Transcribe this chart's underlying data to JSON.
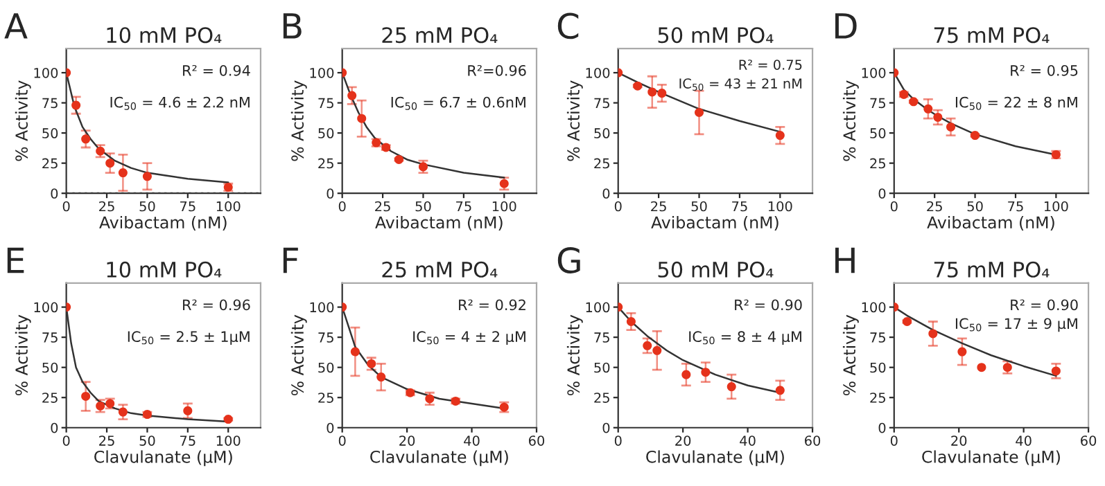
{
  "chart_data": [
    {
      "type": "scatter",
      "title": "10 mM PO₄",
      "xlabel": "Avibactam (nM)",
      "ylabel": "% Activity",
      "annotations": [
        "A",
        "R² = 0.94",
        "IC$_{50}$ = 4.6 ± 2.2 nM"
      ],
      "xlim": [
        0,
        120
      ],
      "xticks": [
        0,
        25,
        50,
        75,
        100
      ],
      "ylim": [
        0,
        120
      ],
      "yticks": [
        0,
        25,
        50,
        75,
        100
      ],
      "ref_lines": [
        {
          "axis": "y",
          "value": 0,
          "color": "#999999",
          "line_style": "dotted"
        }
      ],
      "series": [
        {
          "color": "#e5321b",
          "marker": "circle",
          "x": [
            0,
            6,
            12,
            21,
            27,
            35,
            50,
            100
          ],
          "values": [
            100,
            73,
            45,
            35,
            25,
            17,
            14,
            5
          ],
          "errors": [
            null,
            7,
            7,
            5,
            8,
            15,
            11,
            3
          ]
        },
        {
          "type": "line",
          "color": "#333333",
          "x": [
            0,
            5,
            10,
            15,
            20,
            30,
            40,
            50,
            75,
            100
          ],
          "values": [
            100,
            72,
            55,
            45,
            37,
            27,
            21,
            17,
            12,
            9
          ]
        }
      ]
    },
    {
      "type": "scatter",
      "title": "25 mM PO₄",
      "xlabel": "Avibactam (nM)",
      "ylabel": "% Activity",
      "annotations": [
        "B",
        "R²=0.96",
        "IC$_{50}$ = 6.7 ± 0.6nM"
      ],
      "xlim": [
        0,
        120
      ],
      "xticks": [
        0,
        25,
        50,
        75,
        100
      ],
      "ylim": [
        0,
        120
      ],
      "yticks": [
        0,
        25,
        50,
        75,
        100
      ],
      "series": [
        {
          "color": "#e5321b",
          "marker": "circle",
          "x": [
            0,
            6,
            12,
            21,
            27,
            35,
            50,
            100
          ],
          "values": [
            100,
            81,
            62,
            42,
            38,
            28,
            22,
            8
          ],
          "errors": [
            null,
            7,
            15,
            3,
            2,
            1,
            5,
            5
          ]
        },
        {
          "type": "line",
          "color": "#333333",
          "x": [
            0,
            5,
            10,
            15,
            20,
            30,
            40,
            50,
            75,
            100
          ],
          "values": [
            100,
            82,
            67,
            55,
            46,
            35,
            28,
            24,
            17,
            13
          ]
        }
      ]
    },
    {
      "type": "scatter",
      "title": "50 mM PO₄",
      "xlabel": "Avibactam (nM)",
      "ylabel": "% Activity",
      "annotations": [
        "C",
        "R² = 0.75",
        "IC$_{50}$ = 43 ± 21 nM"
      ],
      "xlim": [
        0,
        120
      ],
      "xticks": [
        0,
        25,
        50,
        75,
        100
      ],
      "ylim": [
        0,
        120
      ],
      "yticks": [
        0,
        25,
        50,
        75,
        100
      ],
      "series": [
        {
          "color": "#e5321b",
          "marker": "circle",
          "x": [
            0,
            12,
            21,
            27,
            50,
            100
          ],
          "values": [
            100,
            89,
            84,
            83,
            67,
            48
          ],
          "errors": [
            null,
            1,
            13,
            7,
            18,
            7
          ]
        },
        {
          "type": "line",
          "color": "#333333",
          "x": [
            0,
            12,
            25,
            50,
            75,
            100
          ],
          "values": [
            100,
            92,
            84,
            70,
            60,
            51
          ]
        }
      ]
    },
    {
      "type": "scatter",
      "title": "75 mM PO₄",
      "xlabel": "Avibactam (nM)",
      "ylabel": "% Activity",
      "annotations": [
        "D",
        "R² = 0.95",
        "IC$_{50}$ = 22 ± 8 nM"
      ],
      "xlim": [
        0,
        120
      ],
      "xticks": [
        0,
        25,
        50,
        75,
        100
      ],
      "ylim": [
        0,
        120
      ],
      "yticks": [
        0,
        25,
        50,
        75,
        100
      ],
      "series": [
        {
          "color": "#e5321b",
          "marker": "circle",
          "x": [
            0,
            6,
            12,
            21,
            27,
            35,
            50,
            100
          ],
          "values": [
            100,
            82,
            76,
            70,
            63,
            55,
            48,
            32
          ],
          "errors": [
            null,
            2,
            1,
            8,
            6,
            7,
            1,
            3
          ]
        },
        {
          "type": "line",
          "color": "#333333",
          "x": [
            0,
            6,
            12,
            21,
            27,
            35,
            50,
            75,
            100
          ],
          "values": [
            100,
            86,
            78,
            69,
            64,
            58,
            49,
            39,
            32
          ]
        }
      ]
    },
    {
      "type": "scatter",
      "title": "10 mM PO₄",
      "xlabel": "Clavulanate (μM)",
      "ylabel": "% Activity",
      "annotations": [
        "E",
        "R² = 0.96",
        "IC$_{50}$ = 2.5 ± 1μM"
      ],
      "xlim": [
        0,
        120
      ],
      "xticks": [
        0,
        25,
        50,
        75,
        100
      ],
      "ylim": [
        0,
        120
      ],
      "yticks": [
        0,
        25,
        50,
        75,
        100
      ],
      "series": [
        {
          "color": "#e5321b",
          "marker": "circle",
          "x": [
            0,
            12,
            21,
            27,
            35,
            50,
            75,
            100
          ],
          "values": [
            100,
            26,
            18,
            20,
            13,
            11,
            14,
            7
          ],
          "errors": [
            null,
            12,
            5,
            4,
            6,
            2,
            6,
            1
          ]
        },
        {
          "type": "line",
          "color": "#333333",
          "x": [
            0,
            3,
            6,
            10,
            15,
            20,
            30,
            40,
            50,
            75,
            100
          ],
          "values": [
            100,
            70,
            50,
            38,
            29,
            22,
            16,
            12,
            10,
            7,
            5
          ]
        }
      ]
    },
    {
      "type": "scatter",
      "title": "25 mM PO₄",
      "xlabel": "Clavulanate (μM)",
      "ylabel": "% Activity",
      "annotations": [
        "F",
        "R² = 0.92",
        "IC$_{50}$ = 4 ± 2 μM"
      ],
      "xlim": [
        0,
        60
      ],
      "xticks": [
        0,
        20,
        40,
        60
      ],
      "ylim": [
        0,
        120
      ],
      "yticks": [
        0,
        25,
        50,
        75,
        100
      ],
      "series": [
        {
          "color": "#e5321b",
          "marker": "circle",
          "x": [
            0,
            4,
            9,
            12,
            21,
            27,
            35,
            50
          ],
          "values": [
            100,
            63,
            53,
            42,
            29,
            24,
            22,
            17
          ],
          "errors": [
            null,
            20,
            5,
            11,
            2,
            5,
            2,
            4
          ]
        },
        {
          "type": "line",
          "color": "#333333",
          "x": [
            0,
            4,
            8,
            12,
            20,
            30,
            40,
            50
          ],
          "values": [
            100,
            67,
            52,
            42,
            32,
            24,
            20,
            16
          ]
        }
      ]
    },
    {
      "type": "scatter",
      "title": "50 mM PO₄",
      "xlabel": "Clavulanate (μM)",
      "ylabel": "% Activity",
      "annotations": [
        "G",
        "R² = 0.90",
        "IC$_{50}$ = 8 ± 4 μM"
      ],
      "xlim": [
        0,
        60
      ],
      "xticks": [
        0,
        20,
        40,
        60
      ],
      "ylim": [
        0,
        120
      ],
      "yticks": [
        0,
        25,
        50,
        75,
        100
      ],
      "series": [
        {
          "color": "#e5321b",
          "marker": "circle",
          "x": [
            0,
            4,
            9,
            12,
            21,
            27,
            35,
            50
          ],
          "values": [
            100,
            88,
            68,
            64,
            44,
            46,
            34,
            31
          ],
          "errors": [
            null,
            7,
            6,
            16,
            9,
            8,
            10,
            8
          ]
        },
        {
          "type": "line",
          "color": "#333333",
          "x": [
            0,
            4,
            9,
            15,
            20,
            30,
            40,
            50
          ],
          "values": [
            100,
            88,
            76,
            64,
            56,
            44,
            35,
            29
          ]
        }
      ]
    },
    {
      "type": "scatter",
      "title": "75 mM PO₄",
      "xlabel": "Clavulanate (μM)",
      "ylabel": "% Activity",
      "annotations": [
        "H",
        "R² = 0.90",
        "IC$_{50}$ = 17 ± 9 μM"
      ],
      "xlim": [
        0,
        60
      ],
      "xticks": [
        0,
        20,
        40,
        60
      ],
      "ylim": [
        0,
        120
      ],
      "yticks": [
        0,
        25,
        50,
        75,
        100
      ],
      "series": [
        {
          "color": "#e5321b",
          "marker": "circle",
          "x": [
            0,
            4,
            12,
            21,
            27,
            35,
            50
          ],
          "values": [
            100,
            88,
            78,
            63,
            50,
            50,
            47
          ],
          "errors": [
            null,
            1,
            10,
            11,
            null,
            5,
            6
          ]
        },
        {
          "type": "line",
          "color": "#333333",
          "x": [
            0,
            4,
            12,
            21,
            30,
            40,
            50
          ],
          "values": [
            100,
            93,
            81,
            70,
            60,
            51,
            43
          ]
        }
      ]
    }
  ]
}
